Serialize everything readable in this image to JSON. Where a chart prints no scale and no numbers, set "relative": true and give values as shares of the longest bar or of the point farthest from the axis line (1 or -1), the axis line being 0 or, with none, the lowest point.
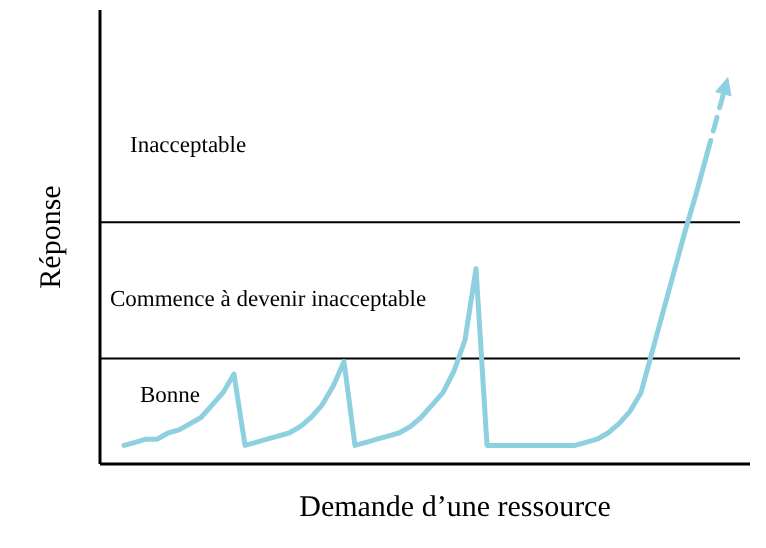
{
  "chart_data": {
    "type": "line",
    "relative": true,
    "xlabel": "Demande d’une ressource",
    "ylabel": "Réponse",
    "categories": [
      null,
      null,
      null,
      null,
      null,
      null,
      null,
      null,
      null,
      null,
      null,
      null,
      null,
      null,
      null,
      null,
      null,
      null,
      null,
      null,
      null,
      null,
      null,
      null,
      null,
      null,
      null,
      null,
      null,
      null,
      null,
      null,
      null,
      null,
      null,
      null,
      null,
      null,
      null,
      null,
      null,
      null,
      null,
      null,
      null,
      null,
      null,
      null,
      null,
      null,
      null,
      null,
      null,
      null
    ],
    "series": [
      {
        "color": "#8fd0e0",
        "line_style": "solid",
        "values": [
          0.06,
          0.07,
          0.08,
          0.08,
          0.1,
          0.11,
          0.13,
          0.15,
          0.19,
          0.23,
          0.29,
          0.06,
          0.07,
          0.08,
          0.09,
          0.1,
          0.12,
          0.15,
          0.19,
          0.25,
          0.33,
          0.06,
          0.07,
          0.08,
          0.09,
          0.1,
          0.12,
          0.15,
          0.19,
          0.23,
          0.3,
          0.4,
          0.63,
          0.06,
          0.06,
          0.06,
          0.06,
          0.06,
          0.06,
          0.06,
          0.06,
          0.06,
          0.07,
          0.08,
          0.1,
          0.13,
          0.17,
          0.23,
          0.36,
          0.49,
          0.62,
          0.75,
          0.87,
          1
        ]
      }
    ],
    "ref_lines": [
      {
        "axis": "y",
        "value": 0.34,
        "color": "#000000"
      },
      {
        "axis": "y",
        "value": 0.78,
        "color": "#000000"
      }
    ],
    "annotations": [
      "Inacceptable",
      "Commence à devenir inacceptable",
      "Bonne"
    ]
  }
}
